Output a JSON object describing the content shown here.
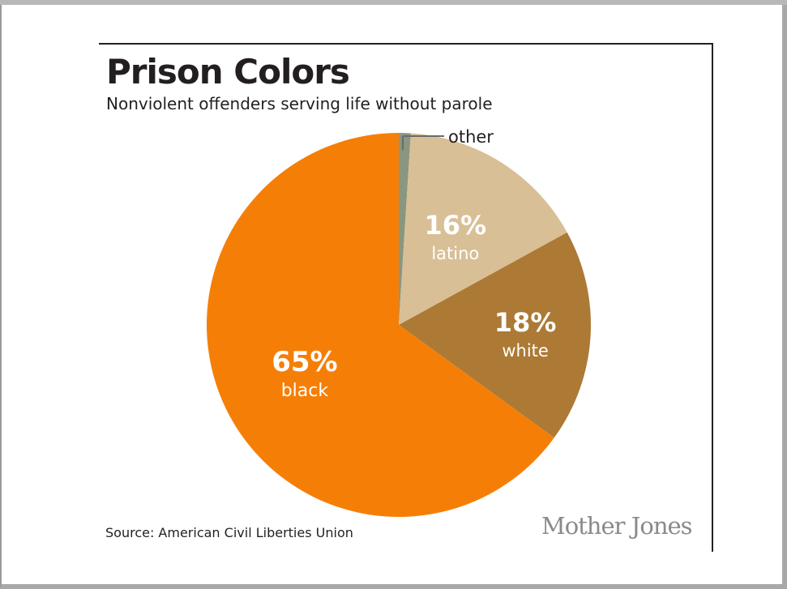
{
  "chart_data": {
    "type": "pie",
    "title": "Prison Colors",
    "subtitle": "Nonviolent offenders serving life without parole",
    "slices": [
      {
        "label": "other",
        "value": 1,
        "pct_label": "",
        "color": "#8a9680"
      },
      {
        "label": "latino",
        "value": 16,
        "pct_label": "16%",
        "color": "#d9bf96"
      },
      {
        "label": "white",
        "value": 18,
        "pct_label": "18%",
        "color": "#ac7a35"
      },
      {
        "label": "black",
        "value": 65,
        "pct_label": "65%",
        "color": "#f57f06"
      }
    ],
    "source": "Source: American Civil Liberties Union"
  },
  "branding": {
    "logo_text": "Mother Jones"
  }
}
